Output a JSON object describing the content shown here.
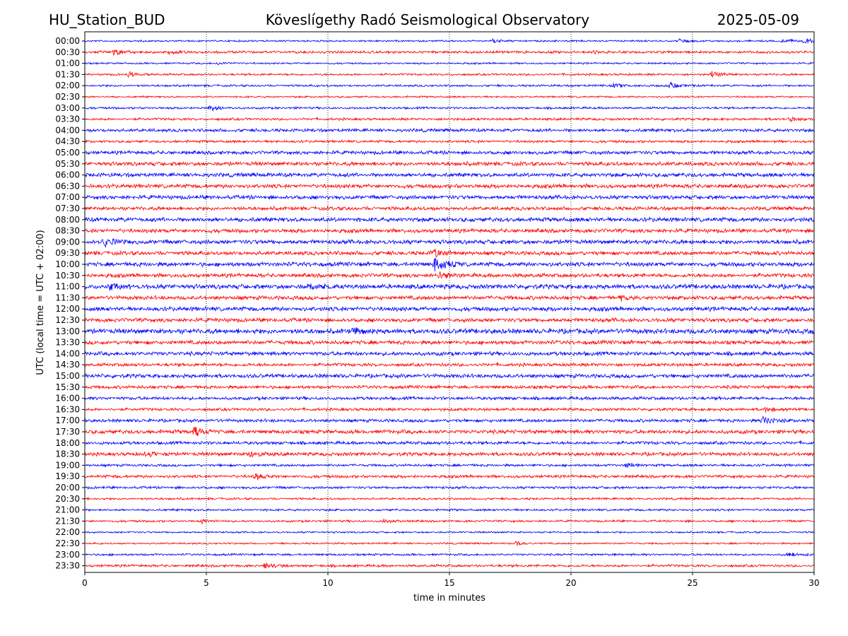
{
  "header": {
    "station": "HU_Station_BUD",
    "observatory": "Köveslígethy Radó Seismological Observatory",
    "date": "2025-05-09"
  },
  "chart_data": {
    "type": "line",
    "title": "Köveslígethy Radó Seismological Observatory",
    "xlabel": "time in minutes",
    "ylabel": "UTC (local time = UTC + 02:00)",
    "xlim": [
      0,
      30
    ],
    "xticks": [
      "0",
      "5",
      "10",
      "15",
      "20",
      "25",
      "30"
    ],
    "grid": "vertical dotted lines at x ticks",
    "colors": {
      "even_rows": "#0000ff",
      "odd_rows": "#ff0000"
    },
    "rows": [
      {
        "label": "00:00",
        "noise": 0.25,
        "events": [
          {
            "t": 16.8,
            "amp": 0.5
          },
          {
            "t": 24.5,
            "amp": 0.5
          },
          {
            "t": 28.7,
            "amp": 0.7
          },
          {
            "t": 29.6,
            "amp": 0.8
          }
        ]
      },
      {
        "label": "00:30",
        "noise": 0.35,
        "events": [
          {
            "t": 1.2,
            "amp": 0.8
          },
          {
            "t": 3.5,
            "amp": 0.45
          },
          {
            "t": 21.0,
            "amp": 0.4
          }
        ]
      },
      {
        "label": "01:00",
        "noise": 0.25,
        "events": [
          {
            "t": 5.5,
            "amp": 0.4
          }
        ]
      },
      {
        "label": "01:30",
        "noise": 0.3,
        "events": [
          {
            "t": 1.8,
            "amp": 0.7
          },
          {
            "t": 25.8,
            "amp": 0.8
          }
        ]
      },
      {
        "label": "02:00",
        "noise": 0.3,
        "events": [
          {
            "t": 21.7,
            "amp": 0.7
          },
          {
            "t": 24.1,
            "amp": 0.8
          }
        ]
      },
      {
        "label": "02:30",
        "noise": 0.25,
        "events": []
      },
      {
        "label": "03:00",
        "noise": 0.3,
        "events": [
          {
            "t": 5.1,
            "amp": 0.9
          }
        ]
      },
      {
        "label": "03:30",
        "noise": 0.35,
        "events": [
          {
            "t": 29.0,
            "amp": 0.5
          }
        ]
      },
      {
        "label": "04:00",
        "noise": 0.45,
        "events": []
      },
      {
        "label": "04:30",
        "noise": 0.35,
        "events": []
      },
      {
        "label": "05:00",
        "noise": 0.5,
        "events": []
      },
      {
        "label": "05:30",
        "noise": 0.55,
        "events": []
      },
      {
        "label": "06:00",
        "noise": 0.55,
        "events": []
      },
      {
        "label": "06:30",
        "noise": 0.55,
        "events": []
      },
      {
        "label": "07:00",
        "noise": 0.55,
        "events": []
      },
      {
        "label": "07:30",
        "noise": 0.5,
        "events": []
      },
      {
        "label": "08:00",
        "noise": 0.6,
        "events": []
      },
      {
        "label": "08:30",
        "noise": 0.55,
        "events": []
      },
      {
        "label": "09:00",
        "noise": 0.6,
        "events": [
          {
            "t": 0.8,
            "amp": 1.1
          }
        ]
      },
      {
        "label": "09:30",
        "noise": 0.55,
        "events": [
          {
            "t": 14.3,
            "amp": 1.3
          }
        ]
      },
      {
        "label": "10:00",
        "noise": 0.6,
        "events": [
          {
            "t": 14.4,
            "amp": 2.2
          }
        ]
      },
      {
        "label": "10:30",
        "noise": 0.55,
        "events": [
          {
            "t": 14.5,
            "amp": 1.2
          }
        ]
      },
      {
        "label": "11:00",
        "noise": 0.65,
        "events": [
          {
            "t": 1.0,
            "amp": 0.9
          },
          {
            "t": 9.2,
            "amp": 1.0
          }
        ]
      },
      {
        "label": "11:30",
        "noise": 0.55,
        "events": [
          {
            "t": 22.0,
            "amp": 0.5
          }
        ]
      },
      {
        "label": "12:00",
        "noise": 0.6,
        "events": []
      },
      {
        "label": "12:30",
        "noise": 0.55,
        "events": []
      },
      {
        "label": "13:00",
        "noise": 0.7,
        "events": [
          {
            "t": 11.0,
            "amp": 0.8
          }
        ]
      },
      {
        "label": "13:30",
        "noise": 0.55,
        "events": []
      },
      {
        "label": "14:00",
        "noise": 0.55,
        "events": []
      },
      {
        "label": "14:30",
        "noise": 0.45,
        "events": []
      },
      {
        "label": "15:00",
        "noise": 0.55,
        "events": []
      },
      {
        "label": "15:30",
        "noise": 0.45,
        "events": []
      },
      {
        "label": "16:00",
        "noise": 0.45,
        "events": []
      },
      {
        "label": "16:30",
        "noise": 0.4,
        "events": [
          {
            "t": 28.0,
            "amp": 0.7
          }
        ]
      },
      {
        "label": "17:00",
        "noise": 0.45,
        "events": [
          {
            "t": 27.9,
            "amp": 1.1
          }
        ]
      },
      {
        "label": "17:30",
        "noise": 0.55,
        "events": [
          {
            "t": 4.5,
            "amp": 1.2
          }
        ]
      },
      {
        "label": "18:00",
        "noise": 0.45,
        "events": []
      },
      {
        "label": "18:30",
        "noise": 0.5,
        "events": [
          {
            "t": 2.5,
            "amp": 0.7
          },
          {
            "t": 6.8,
            "amp": 0.8
          }
        ]
      },
      {
        "label": "19:00",
        "noise": 0.35,
        "events": [
          {
            "t": 22.3,
            "amp": 0.7
          }
        ]
      },
      {
        "label": "19:30",
        "noise": 0.4,
        "events": [
          {
            "t": 7.0,
            "amp": 0.8
          }
        ]
      },
      {
        "label": "20:00",
        "noise": 0.35,
        "events": []
      },
      {
        "label": "20:30",
        "noise": 0.3,
        "events": []
      },
      {
        "label": "21:00",
        "noise": 0.3,
        "events": []
      },
      {
        "label": "21:30",
        "noise": 0.3,
        "events": [
          {
            "t": 4.8,
            "amp": 0.5
          },
          {
            "t": 12.3,
            "amp": 0.5
          }
        ]
      },
      {
        "label": "22:00",
        "noise": 0.25,
        "events": []
      },
      {
        "label": "22:30",
        "noise": 0.25,
        "events": [
          {
            "t": 17.7,
            "amp": 0.5
          }
        ]
      },
      {
        "label": "23:00",
        "noise": 0.3,
        "events": [
          {
            "t": 28.9,
            "amp": 0.6
          }
        ]
      },
      {
        "label": "23:30",
        "noise": 0.35,
        "events": [
          {
            "t": 7.4,
            "amp": 0.9
          }
        ]
      }
    ]
  }
}
